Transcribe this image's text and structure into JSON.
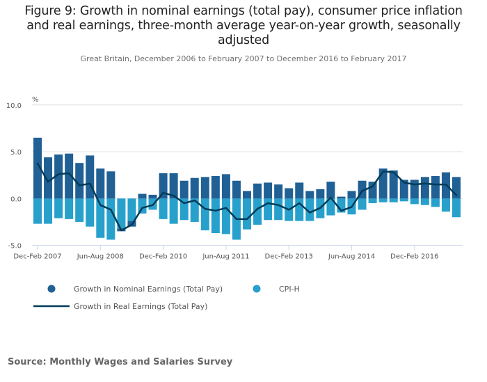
{
  "title": "Figure 9: Growth in nominal earnings (total pay), consumer price inflation and real earnings, three-month average year-on-year growth, seasonally adjusted",
  "title_lines": [
    "Figure 9: Growth in nominal earnings (total pay), consumer price inflation",
    "and real earnings, three-month average year-on-year growth, seasonally",
    "adjusted"
  ],
  "subtitle": "Great Britain, December 2006 to February 2007 to December 2016 to February 2017",
  "source": "Source: Monthly Wages and Salaries Survey",
  "colors": {
    "nominal": "#206095",
    "cpih": "#27a0cc",
    "real": "#003c57",
    "grid": "#e0e0e0",
    "axis": "#ccd6eb"
  },
  "chart_data": {
    "type": "bar",
    "title": "Figure 9: Growth in nominal earnings (total pay), consumer price inflation and real earnings, three-month average year-on-year growth, seasonally adjusted",
    "subtitle": "Great Britain, December 2006 to February 2007 to December 2016 to February 2017",
    "ylabel": "%",
    "xlabel": "",
    "ylim": [
      -5.0,
      10.0
    ],
    "yticks": [
      -5.0,
      0.0,
      5.0,
      10.0
    ],
    "ytick_labels": [
      "-5.0",
      "0.0",
      "5.0",
      "10.0"
    ],
    "grid": true,
    "legend_position": "bottom-left",
    "stacked": true,
    "x_tick_labels": [
      {
        "index": 0,
        "label": "Dec-Feb 2007"
      },
      {
        "index": 6,
        "label": "Jun-Aug 2008"
      },
      {
        "index": 12,
        "label": "Dec-Feb 2010"
      },
      {
        "index": 18,
        "label": "Jun-Aug 2011"
      },
      {
        "index": 24,
        "label": "Dec-Feb 2013"
      },
      {
        "index": 30,
        "label": "Jun-Aug 2014"
      },
      {
        "index": 36,
        "label": "Dec-Feb 2016"
      }
    ],
    "series": [
      {
        "name": "Growth in Nominal Earnings (Total Pay)",
        "type": "bar",
        "legend_symbol": "circle",
        "values": [
          6.5,
          4.4,
          4.7,
          4.8,
          3.8,
          4.6,
          3.2,
          2.9,
          -0.3,
          -0.6,
          0.5,
          0.4,
          2.7,
          2.7,
          1.9,
          2.2,
          2.3,
          2.4,
          2.6,
          1.9,
          0.8,
          1.6,
          1.7,
          1.5,
          1.1,
          1.7,
          0.8,
          1.0,
          1.8,
          0.2,
          0.8,
          1.9,
          1.8,
          3.2,
          3.0,
          2.0,
          2.0,
          2.3,
          2.4,
          2.8,
          2.3
        ]
      },
      {
        "name": "CPI-H",
        "type": "bar",
        "legend_symbol": "circle",
        "values": [
          -2.7,
          -2.7,
          -2.1,
          -2.2,
          -2.5,
          -3.0,
          -4.2,
          -4.4,
          -3.2,
          -2.4,
          -1.6,
          -1.2,
          -2.2,
          -2.7,
          -2.3,
          -2.5,
          -3.4,
          -3.7,
          -3.8,
          -4.4,
          -3.3,
          -2.8,
          -2.3,
          -2.3,
          -2.4,
          -2.4,
          -2.4,
          -2.1,
          -1.8,
          -1.5,
          -1.7,
          -1.2,
          -0.5,
          -0.4,
          -0.4,
          -0.3,
          -0.6,
          -0.7,
          -0.9,
          -1.4,
          -2.0
        ]
      },
      {
        "name": "Growth in Real Earnings (Total Pay)",
        "type": "line",
        "legend_symbol": "line",
        "values": [
          3.75,
          1.8,
          2.6,
          2.7,
          1.4,
          1.6,
          -0.7,
          -1.2,
          -3.4,
          -2.8,
          -1.0,
          -0.7,
          0.6,
          0.3,
          -0.5,
          -0.2,
          -1.1,
          -1.3,
          -1.0,
          -2.2,
          -2.2,
          -1.1,
          -0.5,
          -0.7,
          -1.2,
          -0.5,
          -1.5,
          -1.0,
          0.1,
          -1.3,
          -0.9,
          0.8,
          1.3,
          2.9,
          2.8,
          1.7,
          1.5,
          1.6,
          1.5,
          1.5,
          0.35
        ]
      }
    ]
  }
}
